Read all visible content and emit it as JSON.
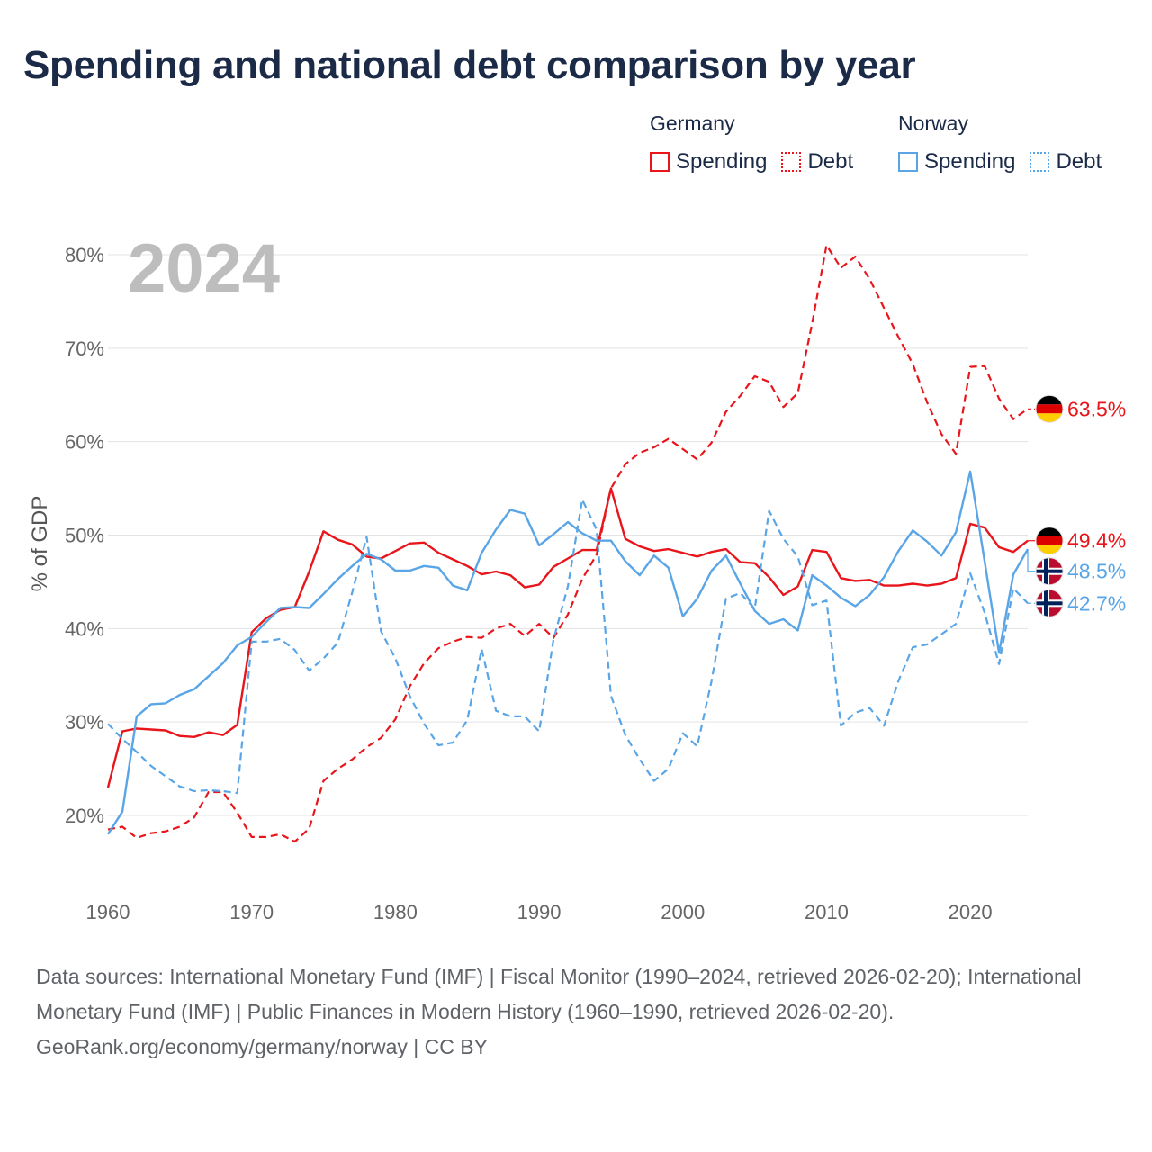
{
  "title": "Spending and national debt comparison by year",
  "legend": {
    "groups": [
      {
        "name": "Germany",
        "items": [
          {
            "label": "Spending",
            "color": "#e8151b",
            "style": "solid"
          },
          {
            "label": "Debt",
            "color": "#e8151b",
            "style": "dotted"
          }
        ]
      },
      {
        "name": "Norway",
        "items": [
          {
            "label": "Spending",
            "color": "#5aa5e6",
            "style": "solid"
          },
          {
            "label": "Debt",
            "color": "#5aa5e6",
            "style": "dotted"
          }
        ]
      }
    ]
  },
  "footer": {
    "sources": "Data sources: International Monetary Fund (IMF) | Fiscal Monitor (1990–2024, retrieved 2026-02-20); International Monetary Fund (IMF) | Public Finances in Modern History (1960–1990, retrieved 2026-02-20).",
    "credit": "GeoRank.org/economy/germany/norway | CC BY"
  },
  "chart_data": {
    "type": "line",
    "year_label": "2024",
    "ylabel": "% of GDP",
    "xlabel": "",
    "xlim": [
      1960,
      2024
    ],
    "ylim": [
      12,
      83
    ],
    "xticks": [
      1960,
      1970,
      1980,
      1990,
      2000,
      2010,
      2020
    ],
    "yticks": [
      20,
      30,
      40,
      50,
      60,
      70,
      80
    ],
    "ytick_labels": [
      "20%",
      "30%",
      "40%",
      "50%",
      "60%",
      "70%",
      "80%"
    ],
    "grid": true,
    "x": [
      1960,
      1961,
      1962,
      1963,
      1964,
      1965,
      1966,
      1967,
      1968,
      1969,
      1970,
      1971,
      1972,
      1973,
      1974,
      1975,
      1976,
      1977,
      1978,
      1979,
      1980,
      1981,
      1982,
      1983,
      1984,
      1985,
      1986,
      1987,
      1988,
      1989,
      1990,
      1991,
      1992,
      1993,
      1994,
      1995,
      1996,
      1997,
      1998,
      1999,
      2000,
      2001,
      2002,
      2003,
      2004,
      2005,
      2006,
      2007,
      2008,
      2009,
      2010,
      2011,
      2012,
      2013,
      2014,
      2015,
      2016,
      2017,
      2018,
      2019,
      2020,
      2021,
      2022,
      2023,
      2024
    ],
    "series": [
      {
        "name": "Germany Debt",
        "country": "Germany",
        "measure": "Debt",
        "color": "#e8151b",
        "dash": "dashed",
        "end_label": "63.5%",
        "values": [
          18.5,
          18.8,
          17.6,
          18.1,
          18.3,
          18.8,
          19.8,
          22.5,
          22.5,
          20.3,
          17.7,
          17.7,
          18.0,
          17.2,
          18.6,
          23.7,
          25.0,
          26.0,
          27.3,
          28.3,
          30.3,
          33.8,
          36.3,
          37.9,
          38.6,
          39.1,
          39.0,
          40.0,
          40.5,
          39.2,
          40.5,
          39.0,
          41.5,
          45.3,
          47.9,
          55.0,
          57.6,
          58.8,
          59.4,
          60.3,
          59.2,
          58.1,
          59.9,
          63.2,
          64.9,
          67.0,
          66.4,
          63.7,
          65.2,
          72.7,
          81.0,
          78.6,
          79.8,
          77.4,
          74.3,
          71.2,
          68.3,
          64.2,
          60.8,
          58.7,
          68.0,
          68.1,
          64.6,
          62.4,
          63.5
        ]
      },
      {
        "name": "Germany Spending",
        "country": "Germany",
        "measure": "Spending",
        "color": "#e8151b",
        "dash": "solid",
        "end_label": "49.4%",
        "values": [
          23.0,
          29.0,
          29.3,
          29.2,
          29.1,
          28.5,
          28.4,
          28.9,
          28.6,
          29.7,
          39.6,
          41.1,
          42.0,
          42.3,
          46.1,
          50.4,
          49.5,
          49.0,
          47.7,
          47.5,
          48.3,
          49.1,
          49.2,
          48.1,
          47.4,
          46.7,
          45.8,
          46.1,
          45.7,
          44.4,
          44.7,
          46.6,
          47.5,
          48.4,
          48.4,
          55.0,
          49.6,
          48.8,
          48.3,
          48.5,
          48.1,
          47.7,
          48.2,
          48.5,
          47.1,
          47.0,
          45.5,
          43.6,
          44.5,
          48.4,
          48.2,
          45.4,
          45.1,
          45.2,
          44.6,
          44.6,
          44.8,
          44.6,
          44.8,
          45.4,
          51.2,
          50.8,
          48.7,
          48.2,
          49.4
        ]
      },
      {
        "name": "Norway Spending",
        "country": "Norway",
        "measure": "Spending",
        "color": "#5aa5e6",
        "dash": "solid",
        "end_label": "48.5%",
        "values": [
          18.0,
          20.4,
          30.6,
          31.9,
          32.0,
          32.9,
          33.5,
          34.9,
          36.3,
          38.2,
          39.1,
          40.7,
          42.2,
          42.3,
          42.2,
          43.7,
          45.3,
          46.7,
          48.0,
          47.4,
          46.2,
          46.2,
          46.7,
          46.5,
          44.6,
          44.1,
          48.1,
          50.6,
          52.7,
          52.3,
          48.9,
          50.1,
          51.4,
          50.2,
          49.4,
          49.4,
          47.2,
          45.7,
          47.8,
          46.5,
          41.3,
          43.2,
          46.2,
          47.8,
          44.8,
          41.9,
          40.5,
          41.0,
          39.8,
          45.7,
          44.6,
          43.3,
          42.4,
          43.6,
          45.5,
          48.3,
          50.5,
          49.3,
          47.8,
          50.3,
          56.8,
          47.2,
          37.4,
          45.8,
          48.5
        ]
      },
      {
        "name": "Norway Debt",
        "country": "Norway",
        "measure": "Debt",
        "color": "#5aa5e6",
        "dash": "dashed",
        "end_label": "42.7%",
        "values": [
          29.8,
          28.2,
          26.8,
          25.3,
          24.2,
          23.1,
          22.6,
          22.7,
          22.6,
          22.4,
          38.6,
          38.6,
          38.9,
          37.7,
          35.5,
          36.8,
          38.5,
          43.9,
          49.8,
          39.7,
          36.8,
          32.8,
          29.8,
          27.5,
          27.8,
          30.2,
          37.8,
          31.2,
          30.6,
          30.6,
          29.0,
          38.8,
          44.5,
          53.8,
          50.6,
          32.8,
          28.6,
          26.0,
          23.7,
          25.0,
          28.8,
          27.4,
          34.4,
          43.2,
          43.8,
          42.1,
          52.6,
          49.6,
          47.7,
          42.5,
          43.0,
          29.6,
          31.0,
          31.5,
          29.6,
          34.4,
          38.0,
          38.3,
          39.4,
          40.5,
          45.9,
          41.7,
          36.2,
          44.3,
          42.7
        ]
      }
    ]
  }
}
